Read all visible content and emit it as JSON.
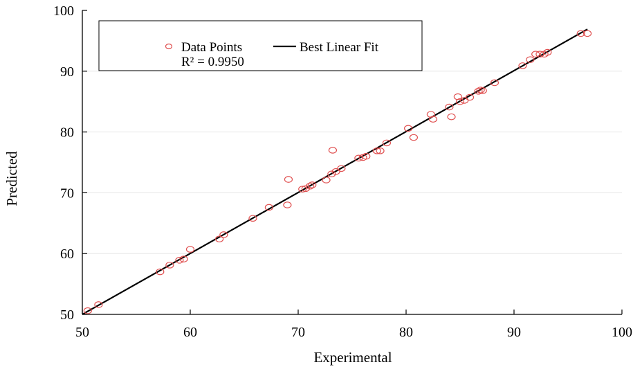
{
  "chart_data": {
    "type": "scatter",
    "xlabel": "Experimental",
    "ylabel": "Predicted",
    "xlim": [
      50,
      100
    ],
    "ylim": [
      50,
      100
    ],
    "x_ticks": [
      50,
      60,
      70,
      80,
      90,
      100
    ],
    "y_ticks": [
      50,
      60,
      70,
      80,
      90,
      100
    ],
    "grid": "horizontal",
    "legend": {
      "position": "top-left",
      "points_label": "Data Points",
      "line_label": "Best Linear Fit",
      "r2_text": "R² = 0.9950"
    },
    "colors": {
      "points": "#e05050",
      "fit_line": "#000000"
    },
    "series": [
      {
        "name": "Data Points",
        "kind": "scatter",
        "points": [
          [
            50.5,
            50.6
          ],
          [
            51.5,
            51.6
          ],
          [
            57.2,
            57.0
          ],
          [
            58.1,
            58.1
          ],
          [
            59.0,
            58.9
          ],
          [
            59.4,
            59.1
          ],
          [
            60.0,
            60.7
          ],
          [
            62.7,
            62.4
          ],
          [
            63.1,
            63.1
          ],
          [
            65.8,
            65.8
          ],
          [
            67.3,
            67.6
          ],
          [
            69.0,
            68.0
          ],
          [
            69.1,
            72.2
          ],
          [
            70.4,
            70.6
          ],
          [
            70.7,
            70.7
          ],
          [
            71.1,
            71.1
          ],
          [
            71.3,
            71.3
          ],
          [
            72.6,
            72.1
          ],
          [
            73.1,
            73.1
          ],
          [
            73.2,
            77.0
          ],
          [
            73.5,
            73.5
          ],
          [
            74.0,
            74.0
          ],
          [
            75.6,
            75.7
          ],
          [
            76.0,
            75.8
          ],
          [
            76.3,
            76.0
          ],
          [
            77.3,
            76.9
          ],
          [
            77.6,
            76.9
          ],
          [
            78.2,
            78.2
          ],
          [
            80.2,
            80.6
          ],
          [
            80.7,
            79.1
          ],
          [
            82.3,
            82.9
          ],
          [
            82.5,
            82.1
          ],
          [
            84.0,
            84.1
          ],
          [
            84.2,
            82.5
          ],
          [
            84.8,
            85.8
          ],
          [
            85.0,
            85.0
          ],
          [
            85.4,
            85.2
          ],
          [
            85.9,
            85.7
          ],
          [
            86.7,
            86.7
          ],
          [
            86.9,
            86.9
          ],
          [
            87.1,
            86.8
          ],
          [
            88.2,
            88.1
          ],
          [
            90.8,
            90.9
          ],
          [
            91.5,
            91.9
          ],
          [
            92.0,
            92.8
          ],
          [
            92.4,
            92.8
          ],
          [
            92.8,
            92.8
          ],
          [
            93.1,
            93.1
          ],
          [
            96.2,
            96.2
          ],
          [
            96.8,
            96.2
          ]
        ]
      },
      {
        "name": "Best Linear Fit",
        "kind": "line",
        "points": [
          [
            50.0,
            50.0
          ],
          [
            96.8,
            96.9
          ]
        ]
      }
    ]
  }
}
